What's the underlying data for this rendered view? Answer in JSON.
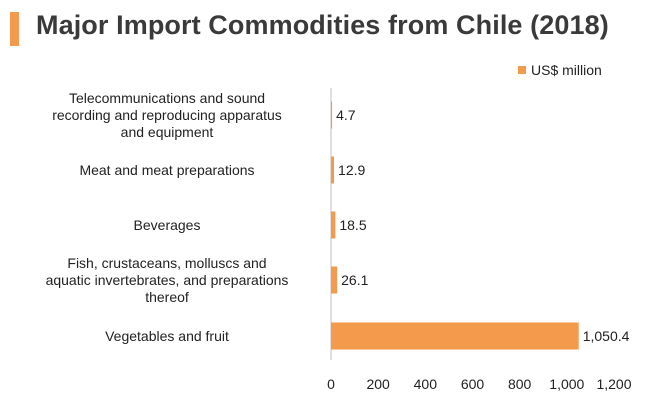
{
  "title": "Major Import Commodities from Chile (2018)",
  "accent_color": "#f39a4d",
  "legend": {
    "label": "US$ million"
  },
  "chart_data": {
    "type": "bar",
    "orientation": "horizontal",
    "categories": [
      "Telecommunications and sound recording and reproducing apparatus and equipment",
      "Meat and meat preparations",
      "Beverages",
      "Fish, crustaceans, molluscs and aquatic invertebrates, and preparations thereof",
      "Vegetables and fruit"
    ],
    "category_lines": [
      [
        "Telecommunications and sound",
        "recording and reproducing apparatus",
        "and equipment"
      ],
      [
        "Meat and meat preparations"
      ],
      [
        "Beverages"
      ],
      [
        "Fish, crustaceans, molluscs and",
        "aquatic invertebrates, and preparations",
        "thereof"
      ],
      [
        "Vegetables and fruit"
      ]
    ],
    "series": [
      {
        "name": "US$ million",
        "values": [
          4.7,
          12.9,
          18.5,
          26.1,
          1050.4
        ],
        "value_labels": [
          "4.7",
          "12.9",
          "18.5",
          "26.1",
          "1,050.4"
        ]
      }
    ],
    "xlim": [
      0,
      1200
    ],
    "xticks": [
      0,
      200,
      400,
      600,
      800,
      1000,
      1200
    ],
    "xtick_labels": [
      "0",
      "200",
      "400",
      "600",
      "800",
      "1,000",
      "1,200"
    ],
    "grid": false,
    "legend_position": "top-right"
  }
}
